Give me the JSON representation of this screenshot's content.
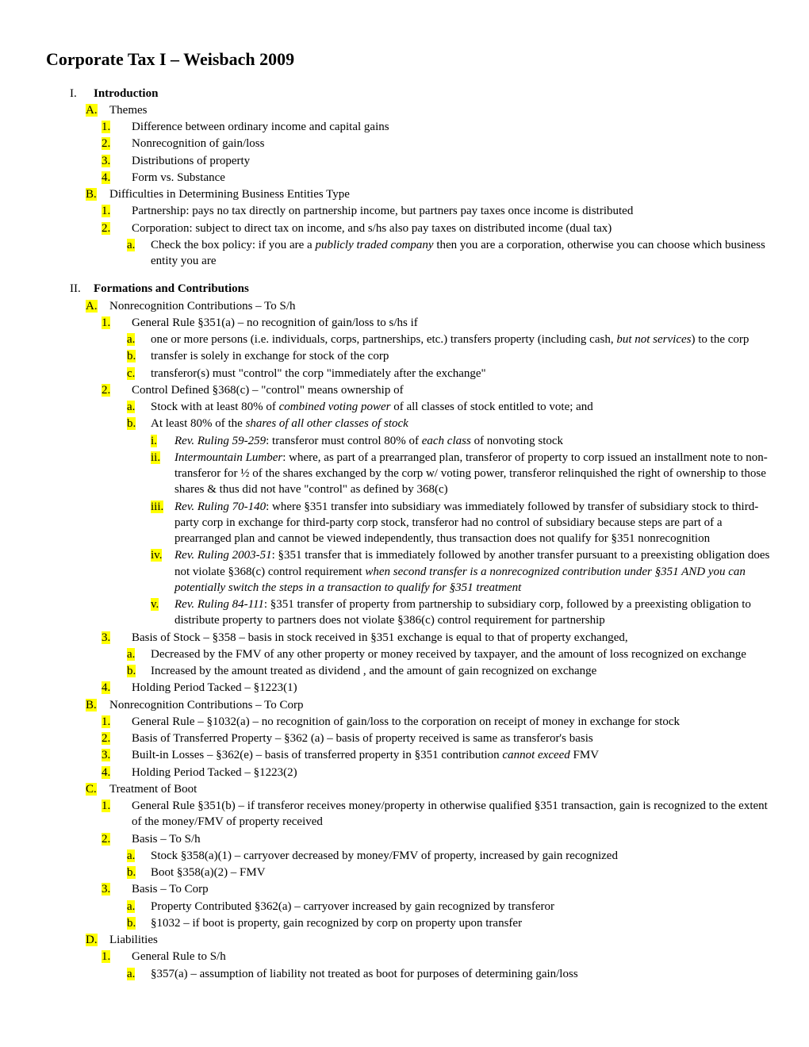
{
  "title": "Corporate Tax I – Weisbach 2009",
  "colors": {
    "highlight": "#ffff00",
    "text": "#000000",
    "bg": "#ffffff"
  },
  "typography": {
    "font_family": "Times New Roman",
    "body_size": 15,
    "h1_size": 22
  },
  "outline": [
    {
      "level": 0,
      "marker": "I.",
      "hl": false,
      "bold": true,
      "text": "Introduction"
    },
    {
      "level": 1,
      "marker": "A.",
      "hl": true,
      "text": "Themes"
    },
    {
      "level": 2,
      "marker": "1.",
      "hl": true,
      "wide": true,
      "text": "Difference between ordinary income and capital gains"
    },
    {
      "level": 2,
      "marker": "2.",
      "hl": true,
      "wide": true,
      "text": "Nonrecognition of gain/loss"
    },
    {
      "level": 2,
      "marker": "3.",
      "hl": true,
      "wide": true,
      "text": "Distributions of property"
    },
    {
      "level": 2,
      "marker": "4.",
      "hl": true,
      "wide": true,
      "text": "Form vs. Substance"
    },
    {
      "level": 1,
      "marker": "B.",
      "hl": true,
      "text": "Difficulties in Determining Business Entities Type"
    },
    {
      "level": 2,
      "marker": "1.",
      "hl": true,
      "wide": true,
      "text": "Partnership: pays no tax directly on partnership income, but partners pay taxes once income is distributed"
    },
    {
      "level": 2,
      "marker": "2.",
      "hl": true,
      "wide": true,
      "text": "Corporation: subject to direct tax on income, and s/hs also pay taxes on distributed income (dual tax)"
    },
    {
      "level": 3,
      "marker": "a.",
      "hl": true,
      "html": "Check the box policy: if you are a <span class=\"italic\">publicly traded company</span> then you are a corporation, otherwise you can choose which business entity you are"
    },
    {
      "spacer": true
    },
    {
      "level": 0,
      "marker": "II.",
      "hl": false,
      "bold": true,
      "text": "Formations and Contributions"
    },
    {
      "level": 1,
      "marker": "A.",
      "hl": true,
      "text": "Nonrecognition Contributions – To S/h"
    },
    {
      "level": 2,
      "marker": "1.",
      "hl": true,
      "wide": true,
      "text": "General Rule §351(a) – no recognition of gain/loss to s/hs if"
    },
    {
      "level": 3,
      "marker": "a.",
      "hl": true,
      "html": "one or more persons (i.e. individuals, corps, partnerships, etc.) transfers property (including cash, <span class=\"italic\">but not services</span>) to the corp"
    },
    {
      "level": 3,
      "marker": "b.",
      "hl": true,
      "text": "transfer is solely in exchange for stock of the corp"
    },
    {
      "level": 3,
      "marker": "c.",
      "hl": true,
      "text": "transferor(s) must \"control\" the corp \"immediately after the exchange\""
    },
    {
      "level": 2,
      "marker": "2.",
      "hl": true,
      "wide": true,
      "text": "Control Defined §368(c) – \"control\" means ownership of"
    },
    {
      "level": 3,
      "marker": "a.",
      "hl": true,
      "html": "Stock with at least 80% of <span class=\"italic\">combined voting power</span> of all classes of stock entitled to vote; and"
    },
    {
      "level": 3,
      "marker": "b.",
      "hl": true,
      "html": "At least 80% of the <span class=\"italic\">shares of all other classes of stock</span>"
    },
    {
      "level": 4,
      "marker": "i.",
      "hl": true,
      "html": "<span class=\"italic\">Rev. Ruling 59-259</span>: transferor must control 80% of <span class=\"italic\">each class</span> of nonvoting stock"
    },
    {
      "level": 4,
      "marker": "ii.",
      "hl": true,
      "html": "<span class=\"italic\">Intermountain Lumber</span>: where, as part of a prearranged plan, transferor of property to corp issued an installment note to non-transferor for ½ of the shares exchanged by the corp w/ voting power, transferor relinquished the right of ownership to those shares & thus did not have \"control\" as defined by 368(c)"
    },
    {
      "level": 4,
      "marker": "iii.",
      "hl": true,
      "html": "<span class=\"italic\">Rev. Ruling 70-140</span>: where §351 transfer into subsidiary was immediately followed by transfer of subsidiary stock to third-party corp in exchange for third-party corp stock, transferor had no control of subsidiary because steps are part of a prearranged plan and cannot be viewed independently, thus transaction does not qualify for §351 nonrecognition"
    },
    {
      "level": 4,
      "marker": "iv.",
      "hl": true,
      "html": "<span class=\"italic\">Rev. Ruling 2003-51</span>: §351 transfer that is immediately followed by another transfer pursuant to a preexisting obligation does not violate §368(c) control requirement <span class=\"italic\">when second transfer is a nonrecognized contribution under §351 AND you can potentially switch the steps in a transaction to qualify for §351 treatment</span>"
    },
    {
      "level": 4,
      "marker": "v.",
      "hl": true,
      "html": "<span class=\"italic\">Rev. Ruling 84-111</span>: §351 transfer of property from partnership to subsidiary corp, followed by a preexisting obligation to distribute property to partners does not violate §386(c) control requirement for partnership"
    },
    {
      "level": 2,
      "marker": "3.",
      "hl": true,
      "wide": true,
      "text": "Basis of Stock – §358 – basis in stock received in §351 exchange is equal to that of property exchanged,"
    },
    {
      "level": 3,
      "marker": "a.",
      "hl": true,
      "text": "Decreased by the FMV of any other property or money received by taxpayer, and the amount of loss recognized on exchange"
    },
    {
      "level": 3,
      "marker": "b.",
      "hl": true,
      "text": "Increased by the amount treated as dividend , and the amount of gain recognized on exchange"
    },
    {
      "level": 2,
      "marker": "4.",
      "hl": true,
      "wide": true,
      "text": "Holding Period Tacked – §1223(1)"
    },
    {
      "level": 1,
      "marker": "B.",
      "hl": true,
      "text": "Nonrecognition Contributions – To Corp"
    },
    {
      "level": 2,
      "marker": "1.",
      "hl": true,
      "wide": true,
      "text": "General Rule – §1032(a) – no recognition of gain/loss to the corporation on receipt of money in exchange for stock"
    },
    {
      "level": 2,
      "marker": "2.",
      "hl": true,
      "wide": true,
      "text": "Basis of Transferred Property – §362 (a) – basis of property received is same as transferor's basis"
    },
    {
      "level": 2,
      "marker": "3.",
      "hl": true,
      "wide": true,
      "html": "Built-in Losses – §362(e) – basis of transferred property in §351 contribution <span class=\"italic\">cannot exceed</span> FMV"
    },
    {
      "level": 2,
      "marker": "4.",
      "hl": true,
      "wide": true,
      "text": "Holding Period Tacked – §1223(2)"
    },
    {
      "level": 1,
      "marker": "C.",
      "hl": true,
      "text": "Treatment of Boot"
    },
    {
      "level": 2,
      "marker": "1.",
      "hl": true,
      "wide": true,
      "text": "General Rule §351(b) – if transferor receives money/property in otherwise qualified §351 transaction, gain is recognized to the extent of the money/FMV of property received"
    },
    {
      "level": 2,
      "marker": "2.",
      "hl": true,
      "wide": true,
      "text": "Basis – To S/h"
    },
    {
      "level": 3,
      "marker": "a.",
      "hl": true,
      "text": "Stock §358(a)(1) – carryover decreased by money/FMV of property, increased by gain recognized"
    },
    {
      "level": 3,
      "marker": "b.",
      "hl": true,
      "text": "Boot §358(a)(2) – FMV"
    },
    {
      "level": 2,
      "marker": "3.",
      "hl": true,
      "wide": true,
      "text": "Basis – To Corp"
    },
    {
      "level": 3,
      "marker": "a.",
      "hl": true,
      "text": "Property Contributed §362(a) – carryover increased by gain recognized by transferor"
    },
    {
      "level": 3,
      "marker": "b.",
      "hl": true,
      "text": "§1032 – if boot is property, gain recognized by corp on property upon transfer"
    },
    {
      "level": 1,
      "marker": "D.",
      "hl": true,
      "text": "Liabilities"
    },
    {
      "level": 2,
      "marker": "1.",
      "hl": true,
      "wide": true,
      "text": "General Rule to S/h"
    },
    {
      "level": 3,
      "marker": "a.",
      "hl": true,
      "text": "§357(a) – assumption of liability not treated as boot for purposes of determining gain/loss"
    }
  ]
}
